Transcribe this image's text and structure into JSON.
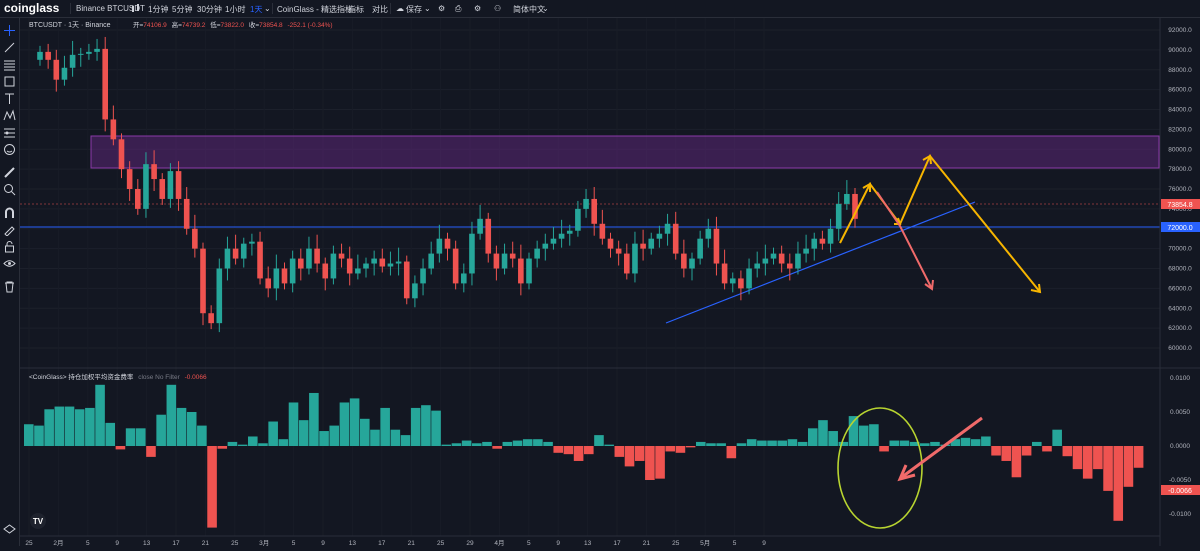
{
  "topbar": {
    "logo": "coinglass",
    "symbol": "Binance BTCUSDT",
    "intervals": [
      "1分钟",
      "5分钟",
      "30分钟",
      "1小时",
      "1天"
    ],
    "active_interval": "1天",
    "indicator_set": "CoinGlass - 精选指标",
    "indicators": "指标",
    "compare": "对比",
    "save": "保存",
    "language": "简体中文"
  },
  "legend": {
    "symbol": "BTCUSDT · 1天 · Binance",
    "open_label": "开=",
    "open": "74106.9",
    "high_label": "高=",
    "high": "74739.2",
    "low_label": "低=",
    "low": "73822.0",
    "close_label": "收=",
    "close": "73854.8",
    "change": "-252.1 (-0.34%)"
  },
  "indicator_legend": {
    "name": "<CoinGlass> 持仓加权平均资金费率",
    "params": "close No Filter",
    "value": "-0.0066"
  },
  "price_axis": {
    "ticks": [
      "92000.0",
      "90000.0",
      "88000.0",
      "86000.0",
      "84000.0",
      "82000.0",
      "80000.0",
      "78000.0",
      "76000.0",
      "74000.0",
      "72000.0",
      "70000.0",
      "68000.0",
      "66000.0",
      "64000.0",
      "62000.0",
      "60000.0"
    ],
    "last_price": "73854.8",
    "hline_price": "72000.0"
  },
  "indicator_axis": {
    "ticks": [
      "0.0100",
      "0.0050",
      "0.0000",
      "-0.0050",
      "-0.0100"
    ],
    "last_value": "-0.0066"
  },
  "time_axis": {
    "labels": [
      "25",
      "2月",
      "5",
      "9",
      "13",
      "17",
      "21",
      "25",
      "3月",
      "5",
      "9",
      "13",
      "17",
      "21",
      "25",
      "29",
      "4月",
      "5",
      "9",
      "13",
      "17",
      "21",
      "25",
      "5月",
      "5",
      "9"
    ]
  },
  "colors": {
    "up": "#26a69a",
    "down": "#ef5350",
    "zone": "#6a2a8a",
    "trend": "#2962ff",
    "arrow_yellow": "#f7b500",
    "arrow_red": "#f06a6a",
    "ellipse": "#b8d430"
  },
  "icons": [
    "crosshair-icon",
    "trendline-icon",
    "fib-icon",
    "rectangle-icon",
    "text-icon",
    "pattern-icon",
    "projection-icon",
    "emoji-icon",
    "ruler-icon",
    "zoom-icon",
    "magnet-icon",
    "lock-icon",
    "eye-icon",
    "trash-icon",
    "tradingview-logo-icon"
  ]
}
